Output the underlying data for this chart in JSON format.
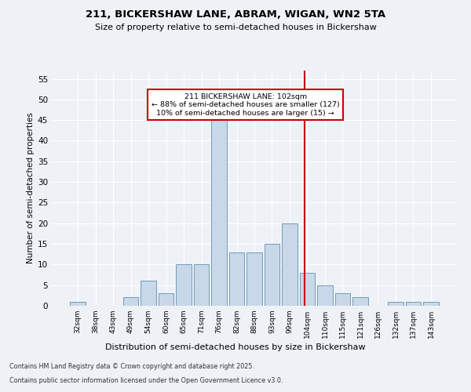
{
  "title1": "211, BICKERSHAW LANE, ABRAM, WIGAN, WN2 5TA",
  "title2": "Size of property relative to semi-detached houses in Bickershaw",
  "xlabel": "Distribution of semi-detached houses by size in Bickershaw",
  "ylabel": "Number of semi-detached properties",
  "bin_labels": [
    "32sqm",
    "38sqm",
    "43sqm",
    "49sqm",
    "54sqm",
    "60sqm",
    "65sqm",
    "71sqm",
    "76sqm",
    "82sqm",
    "88sqm",
    "93sqm",
    "99sqm",
    "104sqm",
    "110sqm",
    "115sqm",
    "121sqm",
    "126sqm",
    "132sqm",
    "137sqm",
    "143sqm"
  ],
  "bin_values": [
    1,
    0,
    0,
    2,
    6,
    3,
    10,
    10,
    45,
    13,
    13,
    15,
    20,
    8,
    5,
    3,
    2,
    0,
    1,
    1,
    1
  ],
  "bar_color": "#c8d8e8",
  "bar_edge_color": "#6090b0",
  "red_line_label": "211 BICKERSHAW LANE: 102sqm",
  "annotation_line2": "← 88% of semi-detached houses are smaller (127)",
  "annotation_line3": "10% of semi-detached houses are larger (15) →",
  "annotation_box_color": "#ffffff",
  "annotation_box_edge": "#cc0000",
  "red_line_color": "#cc0000",
  "background_color": "#eef2f7",
  "grid_color": "#ffffff",
  "footer1": "Contains HM Land Registry data © Crown copyright and database right 2025.",
  "footer2": "Contains public sector information licensed under the Open Government Licence v3.0.",
  "ylim": [
    0,
    57
  ],
  "yticks": [
    0,
    5,
    10,
    15,
    20,
    25,
    30,
    35,
    40,
    45,
    50,
    55
  ],
  "red_line_index": 12.83
}
